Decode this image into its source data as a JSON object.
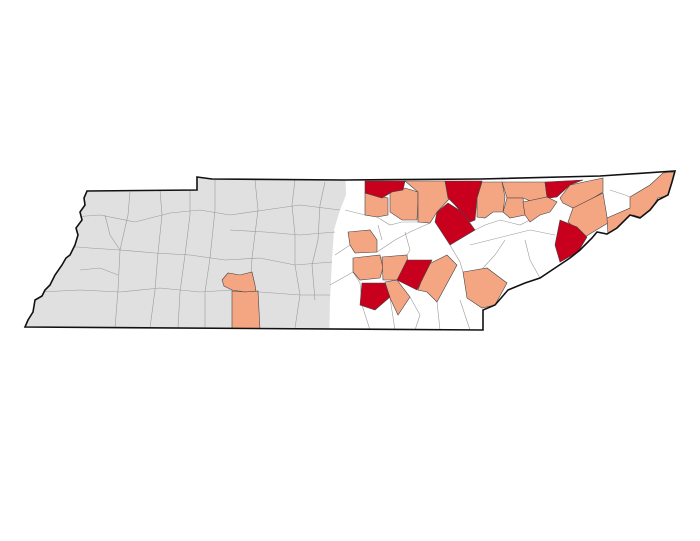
{
  "map": {
    "type": "choropleth",
    "colors": {
      "background": "#ffffff",
      "inactive_region": "#e0e0e0",
      "no_data": "#ffffff",
      "high": "#c8001e",
      "medium": "#f4a582",
      "county_border_gray": "#9a9a9a",
      "county_border": "#444444",
      "state_border": "#111111"
    }
  }
}
